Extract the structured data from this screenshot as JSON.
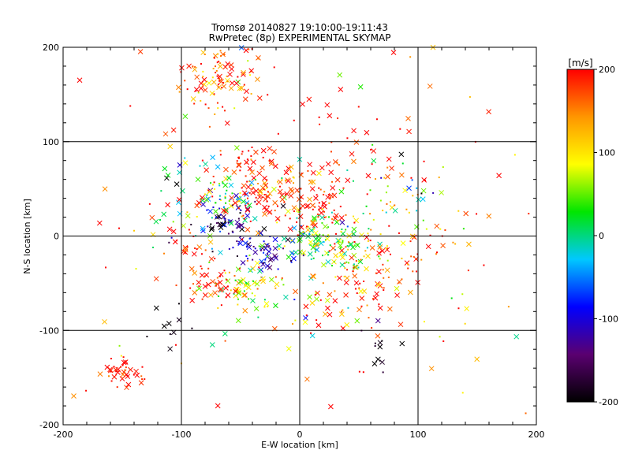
{
  "chart_data": {
    "type": "scatter",
    "title": "Tromsø 20140827 19:10:00-19:11:43",
    "subtitle": "RwPretec (8p) EXPERIMENTAL SKYMAP",
    "xlabel": "E-W location [km]",
    "ylabel": "N-S location [km]",
    "xlim": [
      -200,
      200
    ],
    "ylim": [
      -200,
      200
    ],
    "xticks": [
      -200,
      -100,
      0,
      100,
      200
    ],
    "yticks": [
      -200,
      -100,
      0,
      100,
      200
    ],
    "grid_lines": [
      -100,
      0,
      100
    ],
    "grid": true,
    "colorbar": {
      "label": "[m/s]",
      "min": -200,
      "max": 200,
      "ticks": [
        -200,
        -100,
        0,
        100,
        200
      ],
      "colors": [
        "#000000",
        "#5a0070",
        "#0000ff",
        "#00c8ff",
        "#00e600",
        "#ffff00",
        "#ff9600",
        "#ff0000"
      ]
    },
    "clusters": [
      {
        "cx": -65,
        "cy": 170,
        "sx": 20,
        "sy": 22,
        "n": 110,
        "v": 170,
        "vs": 50
      },
      {
        "cx": -15,
        "cy": 55,
        "sx": 15,
        "sy": 14,
        "n": 70,
        "v": 180,
        "vs": 40
      },
      {
        "cx": -45,
        "cy": 80,
        "sx": 12,
        "sy": 10,
        "n": 30,
        "v": 190,
        "vs": 25
      },
      {
        "cx": -60,
        "cy": 40,
        "sx": 15,
        "sy": 14,
        "n": 60,
        "v": 20,
        "vs": 70
      },
      {
        "cx": -60,
        "cy": 10,
        "sx": 12,
        "sy": 14,
        "n": 60,
        "v": -140,
        "vs": 60
      },
      {
        "cx": -30,
        "cy": -18,
        "sx": 12,
        "sy": 9,
        "n": 55,
        "v": -110,
        "vs": 40
      },
      {
        "cx": 15,
        "cy": -5,
        "sx": 17,
        "sy": 14,
        "n": 110,
        "v": 30,
        "vs": 50
      },
      {
        "cx": 15,
        "cy": 30,
        "sx": 15,
        "sy": 12,
        "n": 55,
        "v": 190,
        "vs": 25
      },
      {
        "cx": -45,
        "cy": -55,
        "sx": 15,
        "sy": 11,
        "n": 70,
        "v": 90,
        "vs": 50
      },
      {
        "cx": -75,
        "cy": -50,
        "sx": 8,
        "sy": 8,
        "n": 20,
        "v": 190,
        "vs": 20
      },
      {
        "cx": 45,
        "cy": -20,
        "sx": 15,
        "sy": 12,
        "n": 40,
        "v": 80,
        "vs": 70
      },
      {
        "cx": 65,
        "cy": -30,
        "sx": 25,
        "sy": 25,
        "n": 40,
        "v": 190,
        "vs": 25
      },
      {
        "cx": 80,
        "cy": 40,
        "sx": 20,
        "sy": 25,
        "n": 55,
        "v": 60,
        "vs": 110
      },
      {
        "cx": 45,
        "cy": 100,
        "sx": 25,
        "sy": 18,
        "n": 25,
        "v": 190,
        "vs": 25
      },
      {
        "cx": -100,
        "cy": 45,
        "sx": 18,
        "sy": 30,
        "n": 45,
        "v": 0,
        "vs": 140
      },
      {
        "cx": 55,
        "cy": -70,
        "sx": 18,
        "sy": 20,
        "n": 35,
        "v": 180,
        "vs": 50
      },
      {
        "cx": -150,
        "cy": -145,
        "sx": 10,
        "sy": 8,
        "n": 40,
        "v": 195,
        "vs": 20
      },
      {
        "cx": -40,
        "cy": 40,
        "sx": 12,
        "sy": 10,
        "n": 35,
        "v": 195,
        "vs": 15
      },
      {
        "cx": 20,
        "cy": -70,
        "sx": 18,
        "sy": 15,
        "n": 30,
        "v": 120,
        "vs": 80
      },
      {
        "cx": -90,
        "cy": -20,
        "sx": 12,
        "sy": 20,
        "n": 30,
        "v": 190,
        "vs": 25
      },
      {
        "cx": 120,
        "cy": -10,
        "sx": 20,
        "sy": 30,
        "n": 25,
        "v": 150,
        "vs": 80
      },
      {
        "cx": 0,
        "cy": 0,
        "sx": 110,
        "sy": 110,
        "n": 140,
        "v": 160,
        "vs": 90
      },
      {
        "cx": -110,
        "cy": -95,
        "sx": 10,
        "sy": 10,
        "n": 10,
        "v": -195,
        "vs": 10
      },
      {
        "cx": 70,
        "cy": -120,
        "sx": 10,
        "sy": 15,
        "n": 12,
        "v": -190,
        "vs": 20
      }
    ]
  }
}
